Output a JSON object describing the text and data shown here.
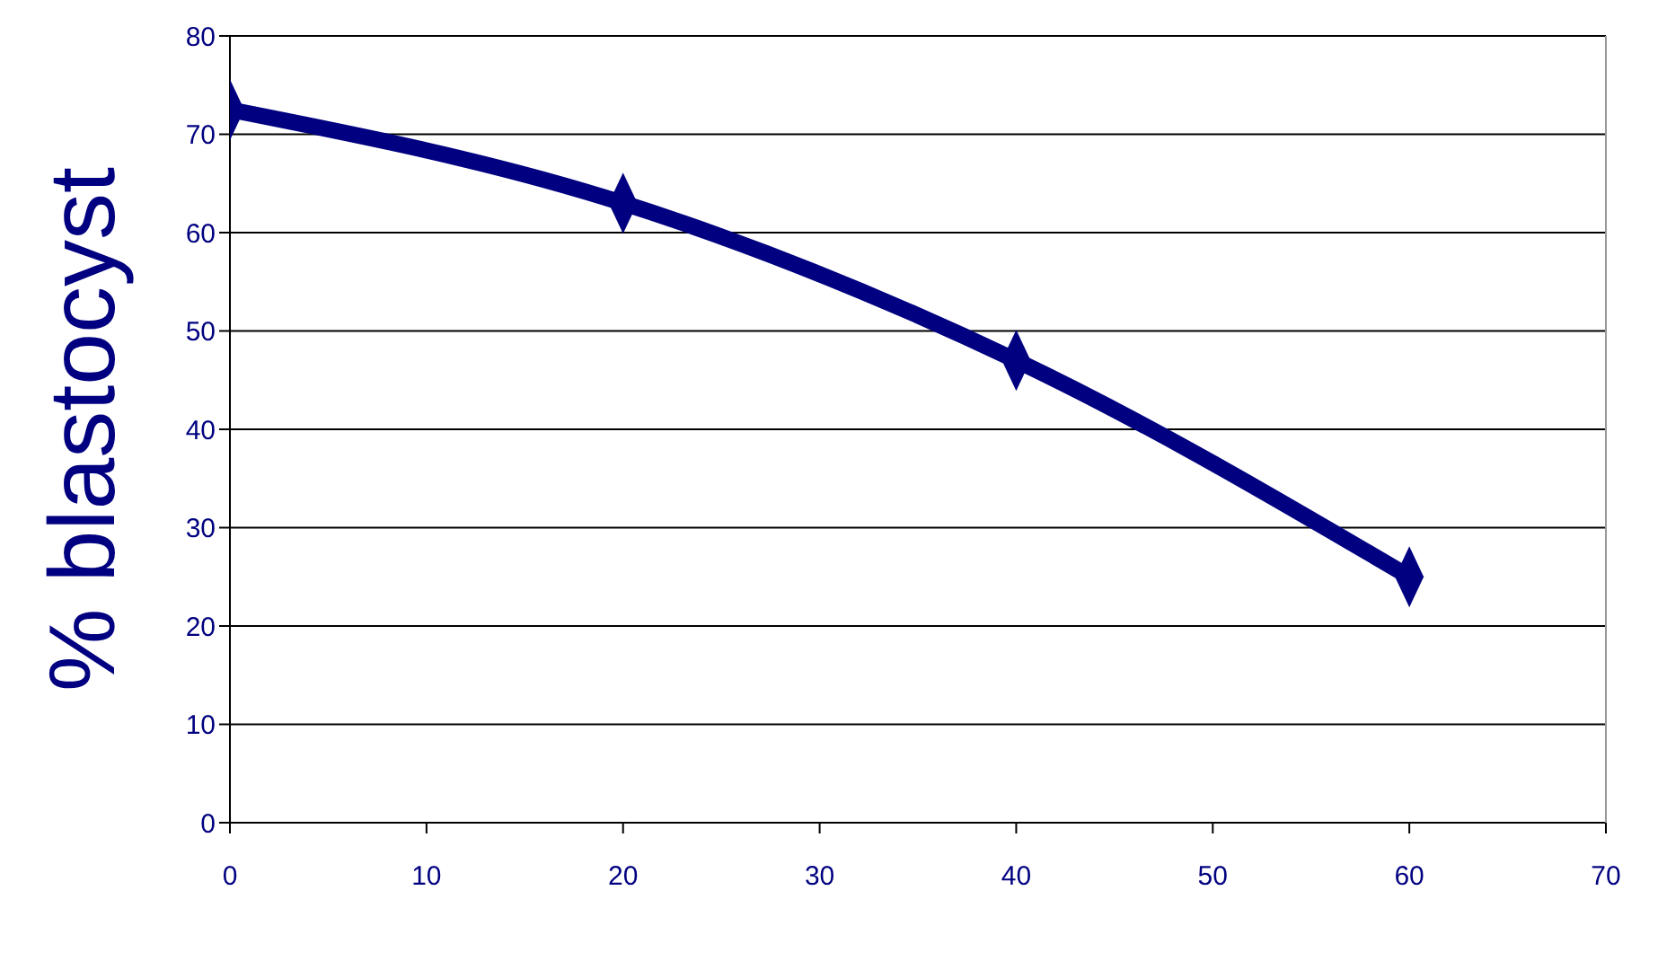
{
  "chart_data": {
    "type": "line",
    "ylabel": "% blastocyst",
    "x": [
      0,
      20,
      40,
      60
    ],
    "series": [
      {
        "color": "#000080",
        "values": [
          72.5,
          63,
          47,
          25
        ]
      }
    ],
    "xlim": [
      0,
      70
    ],
    "xticks": [
      0,
      10,
      20,
      30,
      40,
      50,
      60,
      70
    ],
    "ylim": [
      0,
      80
    ],
    "yticks": [
      0,
      10,
      20,
      30,
      40,
      50,
      60,
      70,
      80
    ],
    "grid": "y",
    "legend": false,
    "marker": "diamond",
    "line_style": "solid"
  }
}
